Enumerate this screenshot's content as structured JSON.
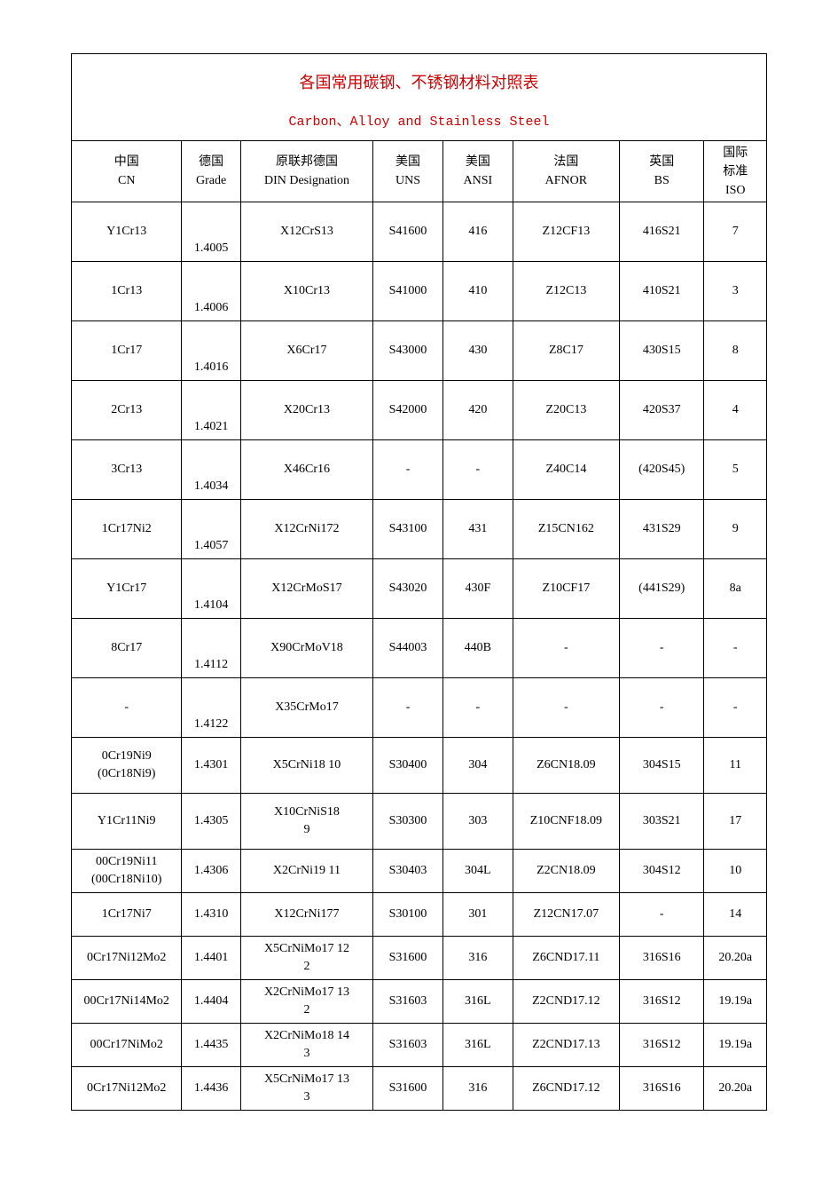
{
  "title": "各国常用碳钢、不锈钢材料对照表",
  "subtitle": "Carbon、Alloy and Stainless Steel",
  "colors": {
    "title_color": "#cc0000",
    "border_color": "#000000",
    "text_color": "#000000",
    "background_color": "#ffffff"
  },
  "columns": [
    {
      "line1": "中国",
      "line2": "CN"
    },
    {
      "line1": "德国",
      "line2": "Grade"
    },
    {
      "line1": "原联邦德国",
      "line2": "DIN  Designation"
    },
    {
      "line1": "美国",
      "line2": "UNS"
    },
    {
      "line1": "美国",
      "line2": "ANSI"
    },
    {
      "line1": "法国",
      "line2": "AFNOR"
    },
    {
      "line1": "英国",
      "line2": "BS"
    },
    {
      "line1": "国际",
      "line2": "标准",
      "line3": "ISO"
    }
  ],
  "rows": [
    {
      "cn": "Y1Cr13",
      "de": "1.4005",
      "din": "X12CrS13",
      "uns": "S41600",
      "ansi": "416",
      "afnor": "Z12CF13",
      "bs": "416S21",
      "iso": "7"
    },
    {
      "cn": "1Cr13",
      "de": "1.4006",
      "din": "X10Cr13",
      "uns": "S41000",
      "ansi": "410",
      "afnor": "Z12C13",
      "bs": "410S21",
      "iso": "3"
    },
    {
      "cn": "1Cr17",
      "de": "1.4016",
      "din": "X6Cr17",
      "uns": "S43000",
      "ansi": "430",
      "afnor": "Z8C17",
      "bs": "430S15",
      "iso": "8"
    },
    {
      "cn": "2Cr13",
      "de": "1.4021",
      "din": "X20Cr13",
      "uns": "S42000",
      "ansi": "420",
      "afnor": "Z20C13",
      "bs": "420S37",
      "iso": "4"
    },
    {
      "cn": "3Cr13",
      "de": "1.4034",
      "din": "X46Cr16",
      "uns": "-",
      "ansi": "-",
      "afnor": "Z40C14",
      "bs": "(420S45)",
      "iso": "5"
    },
    {
      "cn": "1Cr17Ni2",
      "de": "1.4057",
      "din": "X12CrNi172",
      "uns": "S43100",
      "ansi": "431",
      "afnor": "Z15CN162",
      "bs": "431S29",
      "iso": "9"
    },
    {
      "cn": "Y1Cr17",
      "de": "1.4104",
      "din": "X12CrMoS17",
      "uns": "S43020",
      "ansi": "430F",
      "afnor": "Z10CF17",
      "bs": "(441S29)",
      "iso": "8a"
    },
    {
      "cn": "8Cr17",
      "de": "1.4112",
      "din": "X90CrMoV18",
      "uns": "S44003",
      "ansi": "440B",
      "afnor": "-",
      "bs": "-",
      "iso": "-"
    },
    {
      "cn": "-",
      "de": "1.4122",
      "din": "X35CrMo17",
      "uns": "-",
      "ansi": "-",
      "afnor": "-",
      "bs": "-",
      "iso": "-"
    },
    {
      "cn": "0Cr19Ni9\n(0Cr18Ni9)",
      "de": "1.4301",
      "din": "X5CrNi18  10",
      "uns": "S30400",
      "ansi": "304",
      "afnor": "Z6CN18.09",
      "bs": "304S15",
      "iso": "11"
    },
    {
      "cn": "Y1Cr11Ni9",
      "de": "1.4305",
      "din": "X10CrNiS18  9",
      "uns": "S30300",
      "ansi": "303",
      "afnor": "Z10CNF18.09",
      "bs": "303S21",
      "iso": "17"
    },
    {
      "cn": "00Cr19Ni11\n(00Cr18Ni10)",
      "de": "1.4306",
      "din": "X2CrNi19  11",
      "uns": "S30403",
      "ansi": "304L",
      "afnor": "Z2CN18.09",
      "bs": "304S12",
      "iso": "10",
      "tight": true
    },
    {
      "cn": "1Cr17Ni7",
      "de": "1.4310",
      "din": "X12CrNi177",
      "uns": "S30100",
      "ansi": "301",
      "afnor": "Z12CN17.07",
      "bs": "-",
      "iso": "14",
      "tight": true
    },
    {
      "cn": "0Cr17Ni12Mo2",
      "de": "1.4401",
      "din": "X5CrNiMo17  12  2",
      "uns": "S31600",
      "ansi": "316",
      "afnor": "Z6CND17.11",
      "bs": "316S16",
      "iso": "20.20a",
      "tight": true
    },
    {
      "cn": "00Cr17Ni14Mo2",
      "de": "1.4404",
      "din": "X2CrNiMo17  13  2",
      "uns": "S31603",
      "ansi": "316L",
      "afnor": "Z2CND17.12",
      "bs": "316S12",
      "iso": "19.19a",
      "tight": true
    },
    {
      "cn": "00Cr17NiMo2",
      "de": "1.4435",
      "din": "X2CrNiMo18  14  3",
      "uns": "S31603",
      "ansi": "316L",
      "afnor": "Z2CND17.13",
      "bs": "316S12",
      "iso": "19.19a",
      "tight": true
    },
    {
      "cn": "0Cr17Ni12Mo2",
      "de": "1.4436",
      "din": "X5CrNiMo17  13  3",
      "uns": "S31600",
      "ansi": "316",
      "afnor": "Z6CND17.12",
      "bs": "316S16",
      "iso": "20.20a",
      "tight": true
    }
  ]
}
